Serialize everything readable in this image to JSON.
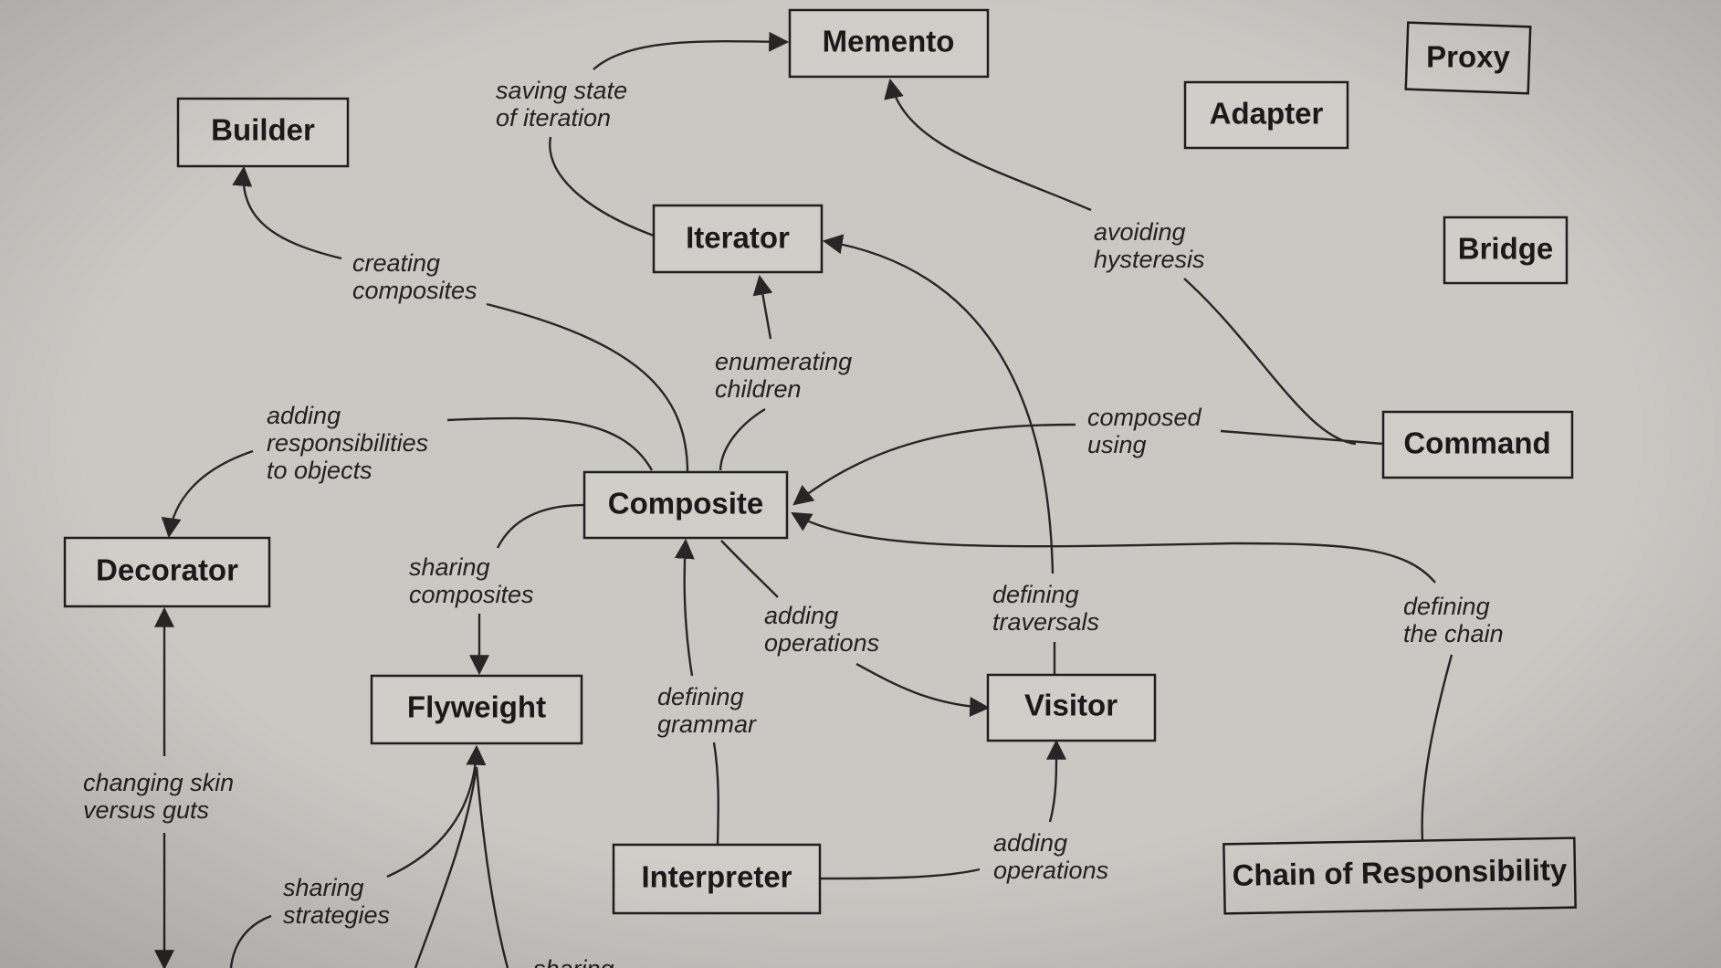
{
  "patterns": {
    "memento": "Memento",
    "proxy": "Proxy",
    "adapter": "Adapter",
    "builder": "Builder",
    "iterator": "Iterator",
    "bridge": "Bridge",
    "command": "Command",
    "composite": "Composite",
    "decorator": "Decorator",
    "flyweight": "Flyweight",
    "visitor": "Visitor",
    "interpreter": "Interpreter",
    "chain_of_responsibility": "Chain of Responsibility"
  },
  "relations": {
    "saving_state": [
      "saving state",
      "of iteration"
    ],
    "creating_composites": [
      "creating",
      "composites"
    ],
    "avoiding_hysteresis": [
      "avoiding",
      "hysteresis"
    ],
    "enumerating_children": [
      "enumerating",
      "children"
    ],
    "adding_responsibilities": [
      "adding",
      "responsibilities",
      "to objects"
    ],
    "composed_using": [
      "composed",
      "using"
    ],
    "sharing_composites": [
      "sharing",
      "composites"
    ],
    "adding_operations_visitor": [
      "adding",
      "operations"
    ],
    "defining_traversals": [
      "defining",
      "traversals"
    ],
    "defining_the_chain": [
      "defining",
      "the chain"
    ],
    "defining_grammar": [
      "defining",
      "grammar"
    ],
    "changing_skin": [
      "changing skin",
      "versus guts"
    ],
    "sharing_strategies": [
      "sharing",
      "strategies"
    ],
    "adding_operations_interpreter": [
      "adding",
      "operations"
    ],
    "sharing_cut": "sharing"
  },
  "colors": {
    "paper": "#c9c8c3",
    "box_fill": "#cfcec9",
    "ink": "#1e1e1e"
  }
}
